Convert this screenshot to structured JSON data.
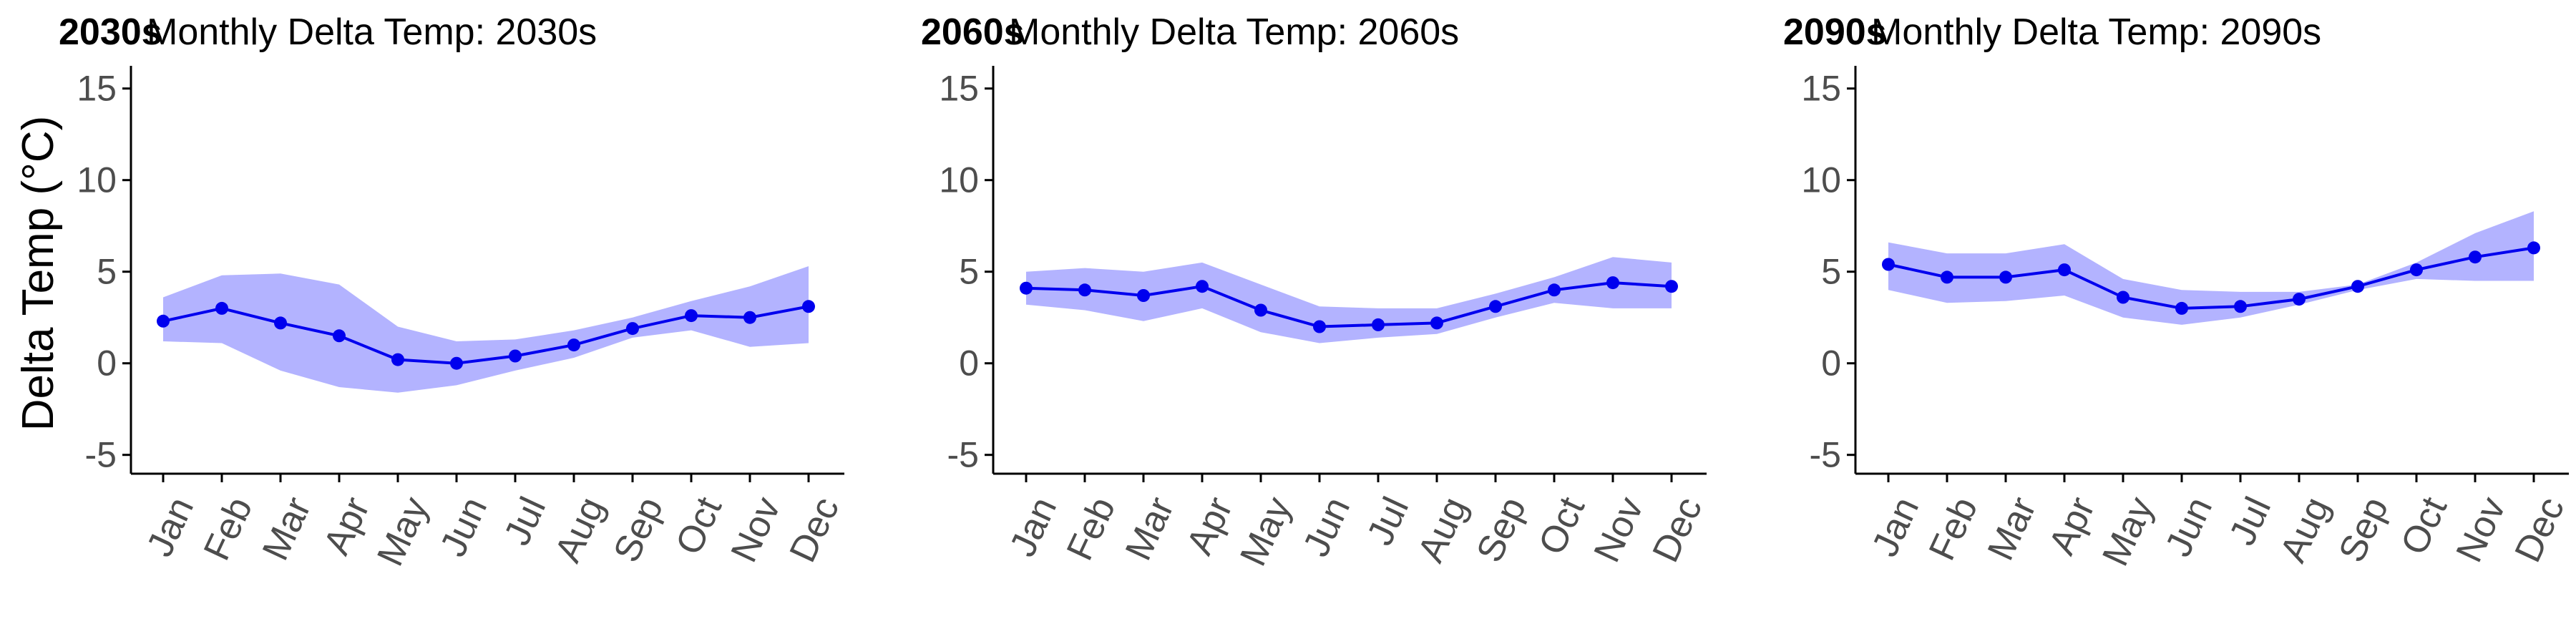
{
  "figure": {
    "ylabel": "Delta Temp (°C)"
  },
  "colors": {
    "line": "#0000ee",
    "band": "#b3b3ff",
    "axis": "#000000",
    "tick_text": "#4d4d4d"
  },
  "chart_data": [
    {
      "type": "line",
      "tag": "2030s",
      "title": "Monthly Delta Temp: 2030s",
      "xlabel": "",
      "ylabel": "Delta Temp (°C)",
      "categories": [
        "Jan",
        "Feb",
        "Mar",
        "Apr",
        "May",
        "Jun",
        "Jul",
        "Aug",
        "Sep",
        "Oct",
        "Nov",
        "Dec"
      ],
      "ylim": [
        -6,
        16
      ],
      "yticks": [
        -5,
        0,
        5,
        10,
        15
      ],
      "grid": false,
      "series": [
        {
          "values": [
            2.3,
            3.0,
            2.2,
            1.5,
            0.2,
            0.0,
            0.4,
            1.0,
            1.9,
            2.6,
            2.5,
            3.1
          ],
          "lower": [
            1.2,
            1.1,
            -0.4,
            -1.3,
            -1.6,
            -1.2,
            -0.4,
            0.3,
            1.4,
            1.8,
            0.9,
            1.1
          ],
          "upper": [
            3.6,
            4.8,
            4.9,
            4.3,
            2.0,
            1.2,
            1.3,
            1.8,
            2.5,
            3.4,
            4.2,
            5.3
          ]
        }
      ]
    },
    {
      "type": "line",
      "tag": "2060s",
      "title": "Monthly Delta Temp: 2060s",
      "xlabel": "",
      "ylabel": "",
      "categories": [
        "Jan",
        "Feb",
        "Mar",
        "Apr",
        "May",
        "Jun",
        "Jul",
        "Aug",
        "Sep",
        "Oct",
        "Nov",
        "Dec"
      ],
      "ylim": [
        -6,
        16
      ],
      "yticks": [
        -5,
        0,
        5,
        10,
        15
      ],
      "grid": false,
      "series": [
        {
          "values": [
            4.1,
            4.0,
            3.7,
            4.2,
            2.9,
            2.0,
            2.1,
            2.2,
            3.1,
            4.0,
            4.4,
            4.2
          ],
          "lower": [
            3.2,
            2.9,
            2.3,
            3.0,
            1.7,
            1.1,
            1.4,
            1.6,
            2.5,
            3.3,
            3.0,
            3.0
          ],
          "upper": [
            5.0,
            5.2,
            5.0,
            5.5,
            4.3,
            3.1,
            3.0,
            3.0,
            3.8,
            4.7,
            5.8,
            5.5
          ]
        }
      ]
    },
    {
      "type": "line",
      "tag": "2090s",
      "title": "Monthly Delta Temp: 2090s",
      "xlabel": "",
      "ylabel": "",
      "categories": [
        "Jan",
        "Feb",
        "Mar",
        "Apr",
        "May",
        "Jun",
        "Jul",
        "Aug",
        "Sep",
        "Oct",
        "Nov",
        "Dec"
      ],
      "ylim": [
        -6,
        16
      ],
      "yticks": [
        -5,
        0,
        5,
        10,
        15
      ],
      "grid": false,
      "series": [
        {
          "values": [
            5.4,
            4.7,
            4.7,
            5.1,
            3.6,
            3.0,
            3.1,
            3.5,
            4.2,
            5.1,
            5.8,
            6.3
          ],
          "lower": [
            4.0,
            3.3,
            3.4,
            3.7,
            2.5,
            2.1,
            2.5,
            3.2,
            4.0,
            4.6,
            4.5,
            4.5
          ],
          "upper": [
            6.6,
            6.0,
            6.0,
            6.5,
            4.6,
            4.0,
            3.9,
            3.9,
            4.3,
            5.5,
            7.1,
            8.3
          ]
        }
      ]
    }
  ]
}
